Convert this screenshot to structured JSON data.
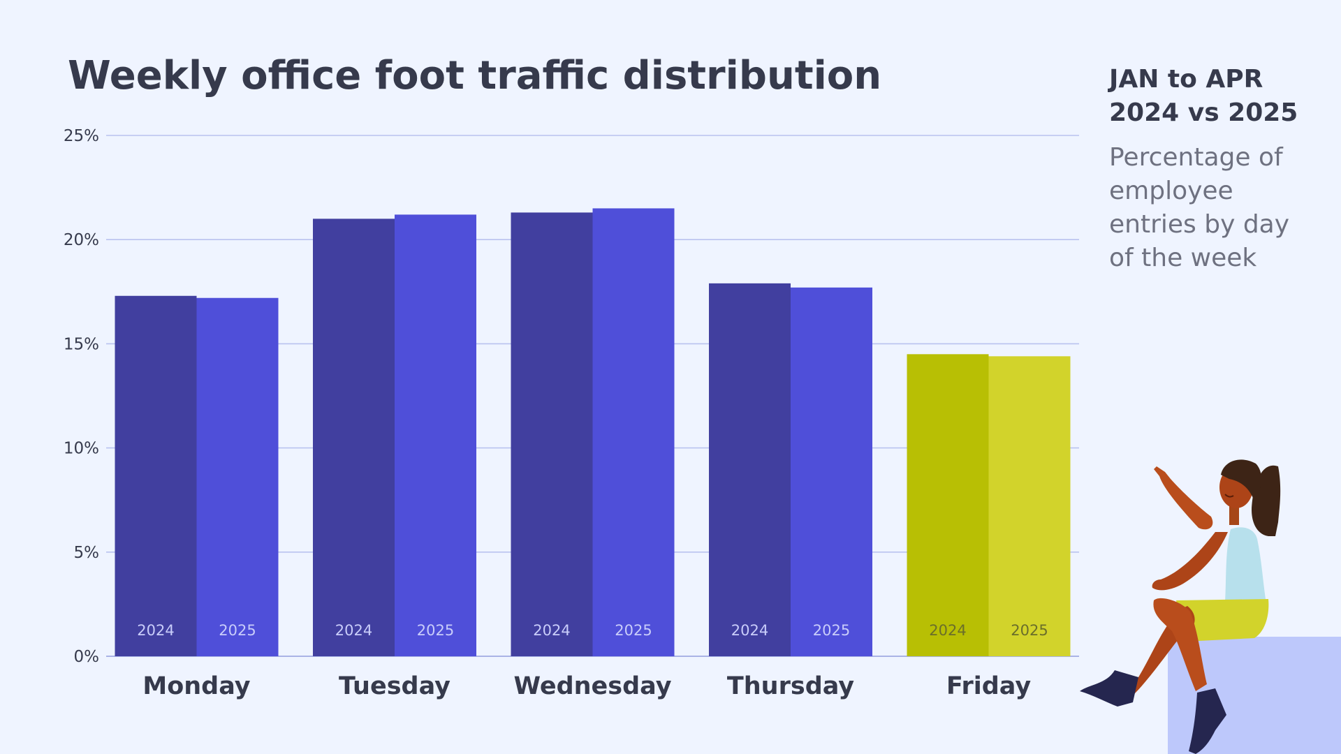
{
  "chart_data": {
    "type": "bar",
    "title": "Weekly office foot traffic distribution",
    "subtitle_lines": [
      "JAN to APR",
      "2024 vs 2025"
    ],
    "description_lines": [
      "Percentage of",
      "employee",
      "entries by day",
      "of the week"
    ],
    "categories": [
      "Monday",
      "Tuesday",
      "Wednesday",
      "Thursday",
      "Friday"
    ],
    "series": [
      {
        "name": "2024",
        "values": [
          17.3,
          21.0,
          21.3,
          17.9,
          14.5
        ]
      },
      {
        "name": "2025",
        "values": [
          17.2,
          21.2,
          21.5,
          17.7,
          14.4
        ]
      }
    ],
    "ylim": [
      0,
      25
    ],
    "yticks": [
      0,
      5,
      10,
      15,
      20,
      25
    ],
    "ytick_labels": [
      "0%",
      "5%",
      "10%",
      "15%",
      "20%",
      "25%"
    ],
    "xlabel": "",
    "ylabel": "",
    "grid": true,
    "highlight_category": "Friday",
    "colors": {
      "series_2024": "#413f9f",
      "series_2025": "#4f4fd9",
      "highlight_2024": "#b8bf04",
      "highlight_2025": "#d2d32b",
      "label_on_dark": "#c9cdfa",
      "label_on_highlight": "#6a6e2a"
    }
  }
}
